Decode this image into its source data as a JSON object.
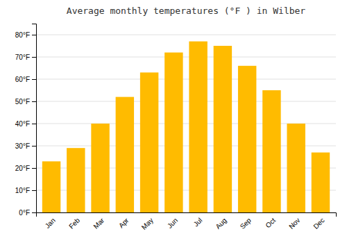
{
  "chart_data": {
    "type": "bar",
    "title": "Average monthly temperatures (°F ) in Wilber",
    "categories": [
      "Jan",
      "Feb",
      "Mar",
      "Apr",
      "May",
      "Jun",
      "Jul",
      "Aug",
      "Sep",
      "Oct",
      "Nov",
      "Dec"
    ],
    "values": [
      23,
      29,
      40,
      52,
      63,
      72,
      77,
      75,
      66,
      55,
      40,
      27
    ],
    "color": "#FFBB00",
    "ylim": [
      0,
      85
    ],
    "yticks": [
      {
        "value": 0,
        "label": "0°F"
      },
      {
        "value": 10,
        "label": "10°F"
      },
      {
        "value": 20,
        "label": "20°F"
      },
      {
        "value": 30,
        "label": "30°F"
      },
      {
        "value": 40,
        "label": "40°F"
      },
      {
        "value": 50,
        "label": "50°F"
      },
      {
        "value": 60,
        "label": "60°F"
      },
      {
        "value": 70,
        "label": "70°F"
      },
      {
        "value": 80,
        "label": "80°F"
      }
    ],
    "grid": true
  }
}
